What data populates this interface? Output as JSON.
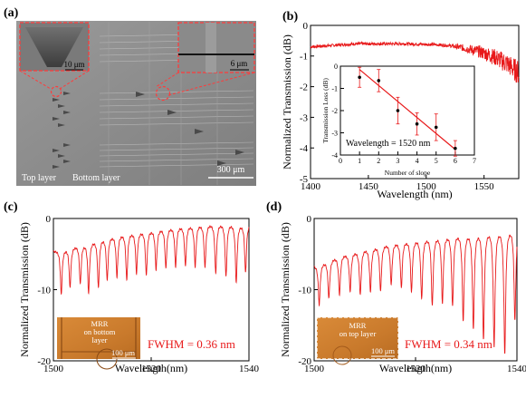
{
  "panels": {
    "a": {
      "label": "(a)",
      "inset_left_scale": "10 μm",
      "inset_right_scale": "6 μm",
      "top_layer_label": "Top layer",
      "bottom_layer_label": "Bottom layer",
      "main_scale": "300 μm"
    },
    "b": {
      "label": "(b)"
    },
    "c": {
      "label": "(c)",
      "mrr_text": "MRR\non bottom\nlayer",
      "mrr_scale": "100 μm"
    },
    "d": {
      "label": "(d)",
      "mrr_text": "MRR\non top layer",
      "mrr_scale": "100 μm"
    }
  },
  "chart_data": [
    {
      "id": "b-main",
      "type": "line",
      "xlabel": "Wavelength (nm)",
      "ylabel": "Normalized Transmission (dB)",
      "xlim": [
        1400,
        1580
      ],
      "ylim": [
        -5,
        0
      ],
      "xticks": [
        1400,
        1450,
        1500,
        1550
      ],
      "yticks": [
        -5,
        -4,
        -3,
        -2,
        -1,
        0
      ],
      "color": "#e8191a",
      "series": [
        {
          "x": [
            1400,
            1420,
            1440,
            1460,
            1480,
            1500,
            1510,
            1520,
            1530,
            1540,
            1550,
            1560,
            1570,
            1580
          ],
          "values": [
            -0.7,
            -0.65,
            -0.6,
            -0.6,
            -0.6,
            -0.62,
            -0.63,
            -0.66,
            -0.72,
            -0.8,
            -0.9,
            -1.05,
            -1.25,
            -1.55
          ]
        }
      ]
    },
    {
      "id": "b-inset",
      "type": "scatter",
      "xlabel": "Number of slope",
      "ylabel": "Transmission Loss (dB)",
      "annotation": "Wavelength = 1520 nm",
      "xlim": [
        0,
        7
      ],
      "ylim": [
        -4,
        0
      ],
      "xticks": [
        0,
        1,
        2,
        3,
        4,
        5,
        6,
        7
      ],
      "yticks": [
        -4,
        -3,
        -2,
        -1,
        0
      ],
      "point_color": "#000000",
      "fit_color": "#e8191a",
      "x": [
        1,
        2,
        3,
        4,
        5,
        6
      ],
      "values": [
        -0.5,
        -0.65,
        -2.0,
        -2.6,
        -2.75,
        -3.7
      ],
      "errors": [
        0.45,
        0.5,
        0.6,
        0.5,
        0.6,
        0.35
      ],
      "fit": {
        "x": [
          1,
          6
        ],
        "values": [
          -0.15,
          -3.75
        ]
      }
    },
    {
      "id": "c-main",
      "type": "line",
      "xlabel": "Wavelength(nm)",
      "ylabel": "Normalized Transmission (dB)",
      "xlim": [
        1500,
        1540
      ],
      "ylim": [
        -20,
        0
      ],
      "xticks": [
        1500,
        1520,
        1540
      ],
      "yticks": [
        -20,
        -10,
        0
      ],
      "annotation": "FWHM = 0.36 nm",
      "color": "#e8191a",
      "baseline": [
        {
          "x": 1500,
          "y": -4.5
        },
        {
          "x": 1505,
          "y": -3.5
        },
        {
          "x": 1510,
          "y": -2.5
        },
        {
          "x": 1515,
          "y": -1.8
        },
        {
          "x": 1520,
          "y": -1.4
        },
        {
          "x": 1525,
          "y": -0.9
        },
        {
          "x": 1530,
          "y": -0.6
        },
        {
          "x": 1535,
          "y": -0.4
        },
        {
          "x": 1540,
          "y": -0.6
        }
      ],
      "resonances": [
        {
          "x": 1501.6,
          "depth": -10.5
        },
        {
          "x": 1503.4,
          "depth": -9.5
        },
        {
          "x": 1505.5,
          "depth": -9.0
        },
        {
          "x": 1507.2,
          "depth": -10.2
        },
        {
          "x": 1509.2,
          "depth": -9.5
        },
        {
          "x": 1511.0,
          "depth": -8.5
        },
        {
          "x": 1513.0,
          "depth": -8.0
        },
        {
          "x": 1515.0,
          "depth": -8.5
        },
        {
          "x": 1517.0,
          "depth": -7.5
        },
        {
          "x": 1519.0,
          "depth": -7.8
        },
        {
          "x": 1521.0,
          "depth": -7.0
        },
        {
          "x": 1523.0,
          "depth": -6.8
        },
        {
          "x": 1525.0,
          "depth": -6.6
        },
        {
          "x": 1527.0,
          "depth": -6.5
        },
        {
          "x": 1529.0,
          "depth": -6.6
        },
        {
          "x": 1531.0,
          "depth": -6.7
        },
        {
          "x": 1533.2,
          "depth": -7.5
        },
        {
          "x": 1535.3,
          "depth": -8.0
        },
        {
          "x": 1537.4,
          "depth": -8.8
        },
        {
          "x": 1539.3,
          "depth": -7.5
        }
      ]
    },
    {
      "id": "d-main",
      "type": "line",
      "xlabel": "Wavelength(nm)",
      "ylabel": "Normalized Transmission (dB)",
      "xlim": [
        1500,
        1540
      ],
      "ylim": [
        -20,
        0
      ],
      "xticks": [
        1500,
        1520,
        1540
      ],
      "yticks": [
        -20,
        -10,
        0
      ],
      "annotation": "FWHM = 0.34 nm",
      "color": "#e8191a",
      "baseline": [
        {
          "x": 1500,
          "y": -6.5
        },
        {
          "x": 1505,
          "y": -5.0
        },
        {
          "x": 1510,
          "y": -4.0
        },
        {
          "x": 1515,
          "y": -3.2
        },
        {
          "x": 1520,
          "y": -2.6
        },
        {
          "x": 1525,
          "y": -2.0
        },
        {
          "x": 1530,
          "y": -1.5
        },
        {
          "x": 1535,
          "y": -1.0
        },
        {
          "x": 1540,
          "y": -0.8
        }
      ],
      "resonances": [
        {
          "x": 1501.0,
          "depth": -12.0
        },
        {
          "x": 1502.9,
          "depth": -11.0
        },
        {
          "x": 1505.0,
          "depth": -10.5
        },
        {
          "x": 1507.1,
          "depth": -10.0
        },
        {
          "x": 1509.1,
          "depth": -10.5
        },
        {
          "x": 1511.1,
          "depth": -10.0
        },
        {
          "x": 1513.1,
          "depth": -10.0
        },
        {
          "x": 1515.2,
          "depth": -9.0
        },
        {
          "x": 1517.2,
          "depth": -9.5
        },
        {
          "x": 1519.2,
          "depth": -10.0
        },
        {
          "x": 1521.2,
          "depth": -11.0
        },
        {
          "x": 1523.3,
          "depth": -12.0
        },
        {
          "x": 1525.3,
          "depth": -11.5
        },
        {
          "x": 1527.3,
          "depth": -12.0
        },
        {
          "x": 1529.4,
          "depth": -14.0
        },
        {
          "x": 1531.4,
          "depth": -15.0
        },
        {
          "x": 1533.4,
          "depth": -16.5
        },
        {
          "x": 1535.5,
          "depth": -17.5
        },
        {
          "x": 1537.6,
          "depth": -18.5
        },
        {
          "x": 1539.6,
          "depth": -14.0
        }
      ]
    }
  ]
}
